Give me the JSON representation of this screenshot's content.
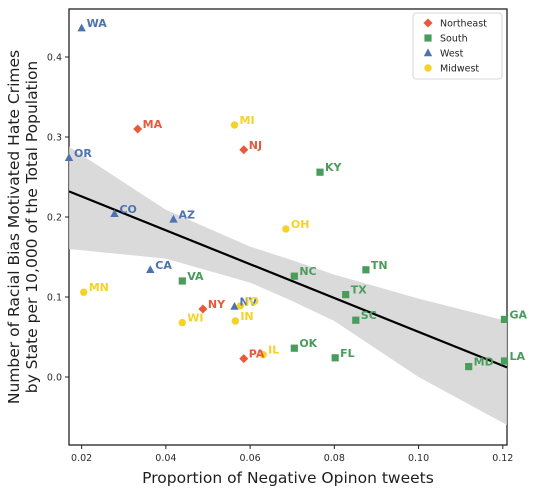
{
  "chart_data": {
    "type": "scatter",
    "xlabel": "Proportion of Negative Opinon tweets",
    "ylabel_lines": [
      "Number of Racial Bias Motivated Hate Crimes",
      "by State per 10,000 of the Total Population"
    ],
    "xlim": [
      0.017,
      0.121
    ],
    "ylim": [
      -0.085,
      0.46
    ],
    "xticks": [
      0.02,
      0.04,
      0.06,
      0.08,
      0.1,
      0.12
    ],
    "xtick_labels": [
      "0.02",
      "0.04",
      "0.06",
      "0.08",
      "0.10",
      "0.12"
    ],
    "yticks": [
      0.0,
      0.1,
      0.2,
      0.3,
      0.4
    ],
    "ytick_labels": [
      "0.0",
      "0.1",
      "0.2",
      "0.3",
      "0.4"
    ],
    "grid": false,
    "legend_position": "top-right",
    "regression": {
      "line": [
        [
          0.017,
          0.232
        ],
        [
          0.121,
          0.012
        ]
      ],
      "ci_band": {
        "x": [
          0.017,
          0.04,
          0.06,
          0.07,
          0.08,
          0.1,
          0.121
        ],
        "upper": [
          0.288,
          0.209,
          0.163,
          0.146,
          0.128,
          0.098,
          0.07
        ],
        "lower": [
          0.16,
          0.148,
          0.118,
          0.095,
          0.07,
          0.0,
          -0.06
        ]
      }
    },
    "series": [
      {
        "name": "Northeast",
        "marker": "diamond",
        "color": "#e8593c",
        "points": [
          {
            "label": "MA",
            "x": 0.0333,
            "y": 0.31
          },
          {
            "label": "NJ",
            "x": 0.0585,
            "y": 0.284
          },
          {
            "label": "NY",
            "x": 0.0488,
            "y": 0.085
          },
          {
            "label": "PA",
            "x": 0.0585,
            "y": 0.023
          }
        ]
      },
      {
        "name": "South",
        "marker": "square",
        "color": "#4a9c5c",
        "points": [
          {
            "label": "KY",
            "x": 0.0766,
            "y": 0.256
          },
          {
            "label": "TN",
            "x": 0.0875,
            "y": 0.134
          },
          {
            "label": "VA",
            "x": 0.0439,
            "y": 0.12
          },
          {
            "label": "NC",
            "x": 0.0705,
            "y": 0.126
          },
          {
            "label": "TX",
            "x": 0.0827,
            "y": 0.103
          },
          {
            "label": "SC",
            "x": 0.0851,
            "y": 0.071
          },
          {
            "label": "GA",
            "x": 0.1204,
            "y": 0.072
          },
          {
            "label": "OK",
            "x": 0.0705,
            "y": 0.036
          },
          {
            "label": "FL",
            "x": 0.0802,
            "y": 0.024
          },
          {
            "label": "MD",
            "x": 0.1119,
            "y": 0.013
          },
          {
            "label": "LA",
            "x": 0.1204,
            "y": 0.02
          }
        ]
      },
      {
        "name": "West",
        "marker": "triangle",
        "color": "#4c72b0",
        "points": [
          {
            "label": "WA",
            "x": 0.02,
            "y": 0.436
          },
          {
            "label": "OR",
            "x": 0.017,
            "y": 0.274
          },
          {
            "label": "CO",
            "x": 0.0278,
            "y": 0.204
          },
          {
            "label": "AZ",
            "x": 0.0418,
            "y": 0.197
          },
          {
            "label": "CA",
            "x": 0.0363,
            "y": 0.134
          },
          {
            "label": "NV",
            "x": 0.0563,
            "y": 0.088
          }
        ]
      },
      {
        "name": "Midwest",
        "marker": "circle",
        "color": "#f6d226",
        "points": [
          {
            "label": "MI",
            "x": 0.0563,
            "y": 0.315
          },
          {
            "label": "OH",
            "x": 0.0685,
            "y": 0.185
          },
          {
            "label": "MN",
            "x": 0.0205,
            "y": 0.106
          },
          {
            "label": "WI",
            "x": 0.0439,
            "y": 0.068
          },
          {
            "label": "IO",
            "x": 0.0577,
            "y": 0.089
          },
          {
            "label": "IN",
            "x": 0.0565,
            "y": 0.07
          },
          {
            "label": "IL",
            "x": 0.0631,
            "y": 0.028
          }
        ]
      }
    ]
  }
}
